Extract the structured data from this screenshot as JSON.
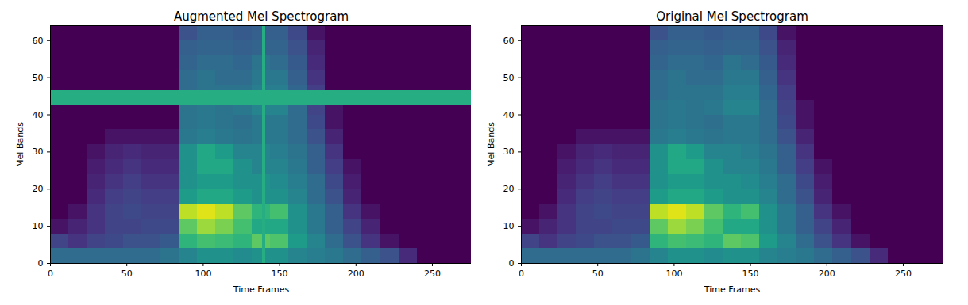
{
  "chart_data": [
    {
      "type": "heatmap",
      "title": "Augmented Mel Spectrogram",
      "x_label": "Time Frames",
      "y_label": "Mel Bands",
      "xlim": [
        0,
        276
      ],
      "ylim": [
        0,
        64
      ],
      "xticks": [
        0,
        50,
        100,
        150,
        200,
        250
      ],
      "yticks": [
        0,
        10,
        20,
        30,
        40,
        50,
        60
      ],
      "color": "viridis",
      "color_range": [
        0,
        1
      ],
      "x_bins": [
        0,
        12,
        24,
        36,
        48,
        60,
        72,
        84,
        96,
        108,
        120,
        132,
        144,
        156,
        168,
        180,
        192,
        204,
        216,
        228,
        240,
        252,
        264,
        276
      ],
      "y_bins": [
        0,
        4,
        8,
        12,
        16,
        20,
        24,
        28,
        32,
        36,
        40,
        44,
        48,
        52,
        56,
        60,
        64
      ],
      "cells": [
        [
          0.35,
          0.35,
          0.35,
          0.35,
          0.35,
          0.35,
          0.38,
          0.45,
          0.5,
          0.5,
          0.48,
          0.5,
          0.5,
          0.45,
          0.42,
          0.4,
          0.35,
          0.3,
          0.25,
          0.12,
          0,
          0,
          0
        ],
        [
          0.2,
          0.15,
          0.2,
          0.22,
          0.25,
          0.25,
          0.28,
          0.65,
          0.7,
          0.68,
          0.65,
          0.75,
          0.72,
          0.55,
          0.45,
          0.35,
          0.25,
          0.15,
          0.05,
          0,
          0,
          0,
          0
        ],
        [
          0.05,
          0.1,
          0.15,
          0.2,
          0.2,
          0.22,
          0.22,
          0.75,
          0.85,
          0.8,
          0.7,
          0.6,
          0.6,
          0.5,
          0.4,
          0.3,
          0.2,
          0.1,
          0,
          0,
          0,
          0,
          0
        ],
        [
          0,
          0.05,
          0.15,
          0.2,
          0.22,
          0.2,
          0.2,
          0.9,
          0.95,
          0.9,
          0.75,
          0.65,
          0.7,
          0.5,
          0.4,
          0.3,
          0.15,
          0.05,
          0,
          0,
          0,
          0,
          0
        ],
        [
          0,
          0,
          0.12,
          0.18,
          0.2,
          0.18,
          0.18,
          0.55,
          0.6,
          0.6,
          0.55,
          0.5,
          0.5,
          0.45,
          0.35,
          0.25,
          0.1,
          0,
          0,
          0,
          0,
          0,
          0
        ],
        [
          0,
          0,
          0.1,
          0.15,
          0.18,
          0.15,
          0.15,
          0.5,
          0.55,
          0.55,
          0.5,
          0.5,
          0.48,
          0.42,
          0.35,
          0.22,
          0.08,
          0,
          0,
          0,
          0,
          0,
          0
        ],
        [
          0,
          0,
          0.08,
          0.12,
          0.15,
          0.12,
          0.12,
          0.5,
          0.6,
          0.6,
          0.5,
          0.45,
          0.45,
          0.4,
          0.3,
          0.18,
          0.05,
          0,
          0,
          0,
          0,
          0,
          0
        ],
        [
          0,
          0,
          0.05,
          0.1,
          0.12,
          0.1,
          0.1,
          0.5,
          0.6,
          0.55,
          0.45,
          0.45,
          0.42,
          0.38,
          0.3,
          0.15,
          0,
          0,
          0,
          0,
          0,
          0,
          0
        ],
        [
          0,
          0,
          0,
          0.05,
          0.05,
          0.05,
          0.05,
          0.4,
          0.42,
          0.4,
          0.38,
          0.4,
          0.4,
          0.35,
          0.25,
          0.1,
          0,
          0,
          0,
          0,
          0,
          0,
          0
        ],
        [
          0,
          0,
          0,
          0,
          0,
          0,
          0,
          0.38,
          0.4,
          0.38,
          0.36,
          0.4,
          0.4,
          0.35,
          0.22,
          0.05,
          0,
          0,
          0,
          0,
          0,
          0,
          0
        ],
        [
          0,
          0,
          0,
          0,
          0,
          0,
          0,
          0.38,
          0.4,
          0.38,
          0.4,
          0.45,
          0.45,
          0.35,
          0.2,
          0.05,
          0,
          0,
          0,
          0,
          0,
          0,
          0
        ],
        [
          0,
          0,
          0,
          0,
          0,
          0,
          0,
          0.35,
          0.38,
          0.38,
          0.38,
          0.42,
          0.42,
          0.33,
          0.18,
          0,
          0,
          0,
          0,
          0,
          0,
          0,
          0
        ],
        [
          0,
          0,
          0,
          0,
          0,
          0,
          0,
          0.35,
          0.38,
          0.35,
          0.35,
          0.4,
          0.4,
          0.3,
          0.15,
          0,
          0,
          0,
          0,
          0,
          0,
          0,
          0
        ],
        [
          0,
          0,
          0,
          0,
          0,
          0,
          0,
          0.32,
          0.35,
          0.35,
          0.33,
          0.38,
          0.35,
          0.28,
          0.12,
          0,
          0,
          0,
          0,
          0,
          0,
          0,
          0
        ],
        [
          0,
          0,
          0,
          0,
          0,
          0,
          0,
          0.3,
          0.32,
          0.32,
          0.3,
          0.32,
          0.32,
          0.25,
          0.1,
          0,
          0,
          0,
          0,
          0,
          0,
          0,
          0
        ],
        [
          0,
          0,
          0,
          0,
          0,
          0,
          0,
          0.25,
          0.3,
          0.3,
          0.28,
          0.3,
          0.3,
          0.22,
          0.05,
          0,
          0,
          0,
          0,
          0,
          0,
          0,
          0
        ]
      ],
      "masks": [
        {
          "axis": "y",
          "range": [
            42.5,
            46.5
          ],
          "value": 0.62
        },
        {
          "axis": "x",
          "range": [
            139,
            141
          ],
          "value": 0.62
        }
      ]
    },
    {
      "type": "heatmap",
      "title": "Original Mel Spectrogram",
      "x_label": "Time Frames",
      "y_label": "Mel Bands",
      "xlim": [
        0,
        276
      ],
      "ylim": [
        0,
        64
      ],
      "xticks": [
        0,
        50,
        100,
        150,
        200,
        250
      ],
      "yticks": [
        0,
        10,
        20,
        30,
        40,
        50,
        60
      ],
      "color": "viridis",
      "color_range": [
        0,
        1
      ],
      "x_bins": [
        0,
        12,
        24,
        36,
        48,
        60,
        72,
        84,
        96,
        108,
        120,
        132,
        144,
        156,
        168,
        180,
        192,
        204,
        216,
        228,
        240,
        252,
        264,
        276
      ],
      "y_bins": [
        0,
        4,
        8,
        12,
        16,
        20,
        24,
        28,
        32,
        36,
        40,
        44,
        48,
        52,
        56,
        60,
        64
      ],
      "cells": [
        [
          0.35,
          0.35,
          0.35,
          0.35,
          0.35,
          0.35,
          0.38,
          0.45,
          0.5,
          0.5,
          0.48,
          0.5,
          0.5,
          0.45,
          0.42,
          0.4,
          0.35,
          0.3,
          0.25,
          0.12,
          0,
          0,
          0
        ],
        [
          0.2,
          0.15,
          0.2,
          0.22,
          0.25,
          0.25,
          0.28,
          0.65,
          0.7,
          0.68,
          0.65,
          0.75,
          0.72,
          0.55,
          0.45,
          0.35,
          0.25,
          0.15,
          0.05,
          0,
          0,
          0,
          0
        ],
        [
          0.05,
          0.1,
          0.15,
          0.2,
          0.2,
          0.22,
          0.22,
          0.75,
          0.85,
          0.8,
          0.7,
          0.6,
          0.6,
          0.5,
          0.4,
          0.3,
          0.2,
          0.1,
          0,
          0,
          0,
          0,
          0
        ],
        [
          0,
          0.05,
          0.15,
          0.2,
          0.22,
          0.2,
          0.2,
          0.9,
          0.95,
          0.9,
          0.75,
          0.65,
          0.7,
          0.5,
          0.4,
          0.3,
          0.15,
          0.05,
          0,
          0,
          0,
          0,
          0
        ],
        [
          0,
          0,
          0.12,
          0.18,
          0.2,
          0.18,
          0.18,
          0.55,
          0.6,
          0.6,
          0.55,
          0.5,
          0.5,
          0.45,
          0.35,
          0.25,
          0.1,
          0,
          0,
          0,
          0,
          0,
          0
        ],
        [
          0,
          0,
          0.1,
          0.15,
          0.18,
          0.15,
          0.15,
          0.5,
          0.55,
          0.55,
          0.5,
          0.5,
          0.48,
          0.42,
          0.35,
          0.22,
          0.08,
          0,
          0,
          0,
          0,
          0,
          0
        ],
        [
          0,
          0,
          0.08,
          0.12,
          0.15,
          0.12,
          0.12,
          0.5,
          0.6,
          0.6,
          0.5,
          0.45,
          0.45,
          0.4,
          0.3,
          0.18,
          0.05,
          0,
          0,
          0,
          0,
          0,
          0
        ],
        [
          0,
          0,
          0.05,
          0.1,
          0.12,
          0.1,
          0.1,
          0.5,
          0.6,
          0.55,
          0.45,
          0.45,
          0.42,
          0.38,
          0.3,
          0.15,
          0,
          0,
          0,
          0,
          0,
          0,
          0
        ],
        [
          0,
          0,
          0,
          0.05,
          0.05,
          0.05,
          0.05,
          0.4,
          0.42,
          0.4,
          0.38,
          0.4,
          0.4,
          0.35,
          0.25,
          0.1,
          0,
          0,
          0,
          0,
          0,
          0,
          0
        ],
        [
          0,
          0,
          0,
          0,
          0,
          0,
          0,
          0.38,
          0.4,
          0.38,
          0.36,
          0.4,
          0.4,
          0.35,
          0.22,
          0.05,
          0,
          0,
          0,
          0,
          0,
          0,
          0
        ],
        [
          0,
          0,
          0,
          0,
          0,
          0,
          0,
          0.38,
          0.4,
          0.38,
          0.4,
          0.45,
          0.45,
          0.35,
          0.2,
          0.05,
          0,
          0,
          0,
          0,
          0,
          0,
          0
        ],
        [
          0,
          0,
          0,
          0,
          0,
          0,
          0,
          0.35,
          0.38,
          0.38,
          0.38,
          0.42,
          0.42,
          0.33,
          0.18,
          0,
          0,
          0,
          0,
          0,
          0,
          0,
          0
        ],
        [
          0,
          0,
          0,
          0,
          0,
          0,
          0,
          0.35,
          0.38,
          0.35,
          0.35,
          0.4,
          0.4,
          0.3,
          0.15,
          0,
          0,
          0,
          0,
          0,
          0,
          0,
          0
        ],
        [
          0,
          0,
          0,
          0,
          0,
          0,
          0,
          0.32,
          0.35,
          0.35,
          0.33,
          0.38,
          0.35,
          0.28,
          0.12,
          0,
          0,
          0,
          0,
          0,
          0,
          0,
          0
        ],
        [
          0,
          0,
          0,
          0,
          0,
          0,
          0,
          0.3,
          0.32,
          0.32,
          0.3,
          0.32,
          0.32,
          0.25,
          0.1,
          0,
          0,
          0,
          0,
          0,
          0,
          0,
          0
        ],
        [
          0,
          0,
          0,
          0,
          0,
          0,
          0,
          0.25,
          0.3,
          0.3,
          0.28,
          0.3,
          0.3,
          0.22,
          0.05,
          0,
          0,
          0,
          0,
          0,
          0,
          0,
          0
        ]
      ]
    }
  ]
}
